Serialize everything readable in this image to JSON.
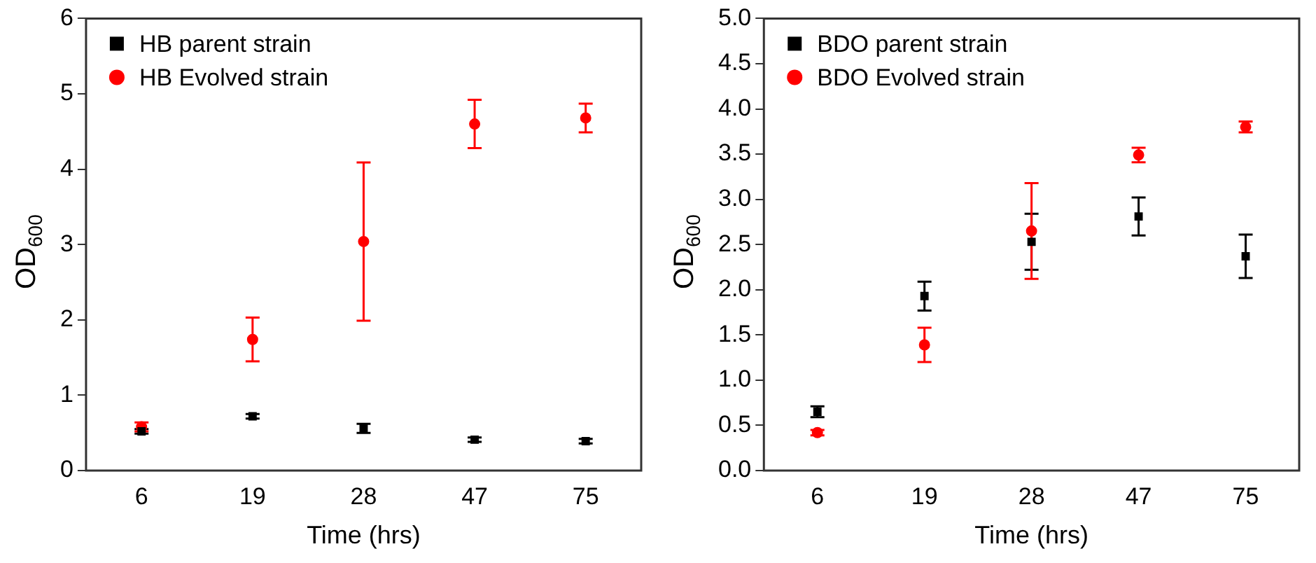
{
  "chart_data": [
    {
      "type": "scatter",
      "xlabel": "Time (hrs)",
      "ylabel": "OD$_{600}$",
      "categories": [
        "6",
        "19",
        "28",
        "47",
        "75"
      ],
      "ylim": [
        0,
        6
      ],
      "yticks": [
        0,
        1,
        2,
        3,
        4,
        5,
        6
      ],
      "grid": false,
      "legend": "top left",
      "series": [
        {
          "name": "HB parent strain",
          "color": "#000000",
          "marker": "square",
          "values": [
            0.52,
            0.72,
            0.56,
            0.41,
            0.39
          ],
          "errors": [
            0.03,
            0.03,
            0.06,
            0.03,
            0.03
          ]
        },
        {
          "name": "HB Evolved strain",
          "color": "#ff0000",
          "marker": "circle",
          "values": [
            0.58,
            1.74,
            3.04,
            4.6,
            4.68
          ],
          "errors": [
            0.06,
            0.29,
            1.05,
            0.32,
            0.19
          ]
        }
      ]
    },
    {
      "type": "scatter",
      "xlabel": "Time (hrs)",
      "ylabel": "OD$_{600}$",
      "categories": [
        "6",
        "19",
        "28",
        "47",
        "75"
      ],
      "ylim": [
        0,
        5
      ],
      "yticks": [
        {
          "value": 0,
          "label": "0.0"
        },
        0.5,
        {
          "value": 1,
          "label": "1.0"
        },
        1.5,
        {
          "value": 2,
          "label": "2.0"
        },
        2.5,
        {
          "value": 3,
          "label": "3.0"
        },
        3.5,
        {
          "value": 4,
          "label": "4.0"
        },
        4.5,
        {
          "value": 5,
          "label": "5.0"
        }
      ],
      "grid": false,
      "legend": "top left",
      "series": [
        {
          "name": "BDO parent strain",
          "color": "#000000",
          "marker": "square",
          "values": [
            0.65,
            1.93,
            2.53,
            2.81,
            2.37
          ],
          "errors": [
            0.06,
            0.16,
            0.31,
            0.21,
            0.24
          ]
        },
        {
          "name": "BDO Evolved strain",
          "color": "#ff0000",
          "marker": "circle",
          "values": [
            0.42,
            1.39,
            2.65,
            3.49,
            3.8
          ],
          "errors": [
            0.03,
            0.19,
            0.53,
            0.08,
            0.06
          ]
        }
      ]
    }
  ]
}
